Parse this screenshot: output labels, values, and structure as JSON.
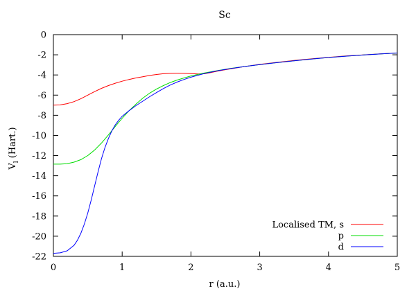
{
  "chart_data": {
    "type": "line",
    "title": "Sc",
    "xlabel": "r (a.u.)",
    "ylabel": "V",
    "ylabel_sub": "l",
    "ylabel_unit": " (Hart.)",
    "xlim": [
      0,
      5
    ],
    "ylim": [
      -22,
      0
    ],
    "xticks": [
      0,
      1,
      2,
      3,
      4,
      5
    ],
    "yticks": [
      0,
      -2,
      -4,
      -6,
      -8,
      -10,
      -12,
      -14,
      -16,
      -18,
      -20,
      -22
    ],
    "grid": false,
    "legend_position": "bottom-right",
    "series": [
      {
        "name": "Localised TM, s",
        "color": "#ff0000",
        "x": [
          0,
          0.1,
          0.2,
          0.3,
          0.4,
          0.5,
          0.6,
          0.7,
          0.8,
          0.9,
          1.0,
          1.1,
          1.2,
          1.3,
          1.4,
          1.5,
          1.6,
          1.7,
          1.8,
          1.9,
          2.0,
          2.1,
          2.2,
          2.3,
          2.4,
          2.5,
          2.75,
          3.0,
          3.25,
          3.5,
          3.75,
          4.0,
          4.25,
          4.5,
          4.75,
          5.0
        ],
        "y": [
          -7.0,
          -6.97,
          -6.85,
          -6.65,
          -6.35,
          -6.0,
          -5.65,
          -5.33,
          -5.05,
          -4.82,
          -4.62,
          -4.45,
          -4.3,
          -4.17,
          -4.05,
          -3.95,
          -3.88,
          -3.84,
          -3.83,
          -3.84,
          -3.87,
          -3.9,
          -3.88,
          -3.75,
          -3.6,
          -3.48,
          -3.2,
          -2.95,
          -2.75,
          -2.56,
          -2.4,
          -2.25,
          -2.12,
          -2.01,
          -1.91,
          -1.82
        ]
      },
      {
        "name": "p",
        "color": "#00dd00",
        "x": [
          0,
          0.1,
          0.2,
          0.3,
          0.4,
          0.5,
          0.6,
          0.7,
          0.8,
          0.9,
          1.0,
          1.1,
          1.2,
          1.3,
          1.4,
          1.5,
          1.6,
          1.7,
          1.8,
          1.9,
          2.0,
          2.2,
          2.4,
          2.6,
          2.8,
          3.0,
          3.25,
          3.5,
          3.75,
          4.0,
          4.25,
          4.5,
          4.75,
          5.0
        ],
        "y": [
          -12.85,
          -12.85,
          -12.8,
          -12.65,
          -12.4,
          -12.0,
          -11.45,
          -10.75,
          -9.95,
          -9.1,
          -8.3,
          -7.55,
          -6.9,
          -6.3,
          -5.8,
          -5.4,
          -5.05,
          -4.75,
          -4.5,
          -4.3,
          -4.1,
          -3.8,
          -3.55,
          -3.33,
          -3.14,
          -2.97,
          -2.78,
          -2.59,
          -2.42,
          -2.27,
          -2.14,
          -2.02,
          -1.92,
          -1.82
        ]
      },
      {
        "name": "d",
        "color": "#0000ff",
        "x": [
          0,
          0.1,
          0.2,
          0.3,
          0.35,
          0.4,
          0.45,
          0.5,
          0.55,
          0.6,
          0.65,
          0.7,
          0.75,
          0.8,
          0.85,
          0.9,
          0.95,
          1.0,
          1.1,
          1.2,
          1.3,
          1.4,
          1.5,
          1.6,
          1.7,
          1.8,
          1.9,
          2.0,
          2.2,
          2.4,
          2.6,
          2.8,
          3.0,
          3.25,
          3.5,
          3.75,
          4.0,
          4.25,
          4.5,
          4.75,
          5.0
        ],
        "y": [
          -21.7,
          -21.65,
          -21.45,
          -20.9,
          -20.4,
          -19.7,
          -18.8,
          -17.7,
          -16.4,
          -15.0,
          -13.6,
          -12.3,
          -11.2,
          -10.3,
          -9.55,
          -8.95,
          -8.5,
          -8.1,
          -7.55,
          -7.05,
          -6.6,
          -6.15,
          -5.75,
          -5.35,
          -5.0,
          -4.7,
          -4.45,
          -4.22,
          -3.85,
          -3.57,
          -3.34,
          -3.15,
          -2.97,
          -2.78,
          -2.59,
          -2.42,
          -2.27,
          -2.14,
          -2.02,
          -1.92,
          -1.82
        ]
      }
    ]
  }
}
